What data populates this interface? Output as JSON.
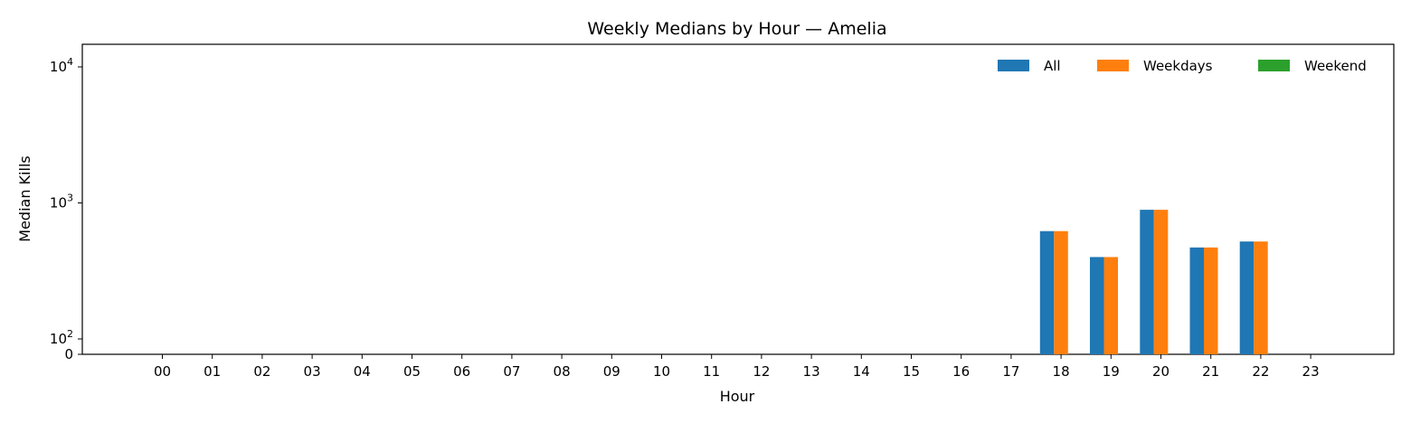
{
  "chart_data": {
    "type": "bar",
    "title": "Weekly Medians by Hour — Amelia",
    "xlabel": "Hour",
    "ylabel": "Median Kills",
    "yscale": "symlog",
    "ylim": [
      0,
      14000
    ],
    "ytick_labels": [
      {
        "value": 0,
        "base": "0",
        "exp": ""
      },
      {
        "value": 100,
        "base": "10",
        "exp": "2"
      },
      {
        "value": 1000,
        "base": "10",
        "exp": "3"
      },
      {
        "value": 10000,
        "base": "10",
        "exp": "4"
      }
    ],
    "categories": [
      "00",
      "01",
      "02",
      "03",
      "04",
      "05",
      "06",
      "07",
      "08",
      "09",
      "10",
      "11",
      "12",
      "13",
      "14",
      "15",
      "16",
      "17",
      "18",
      "19",
      "20",
      "21",
      "22",
      "23"
    ],
    "series": [
      {
        "name": "All",
        "color": "#1f77b4",
        "values": [
          0,
          0,
          0,
          0,
          0,
          0,
          0,
          0,
          0,
          0,
          0,
          0,
          0,
          0,
          0,
          0,
          0,
          0,
          620,
          400,
          890,
          470,
          520,
          0
        ]
      },
      {
        "name": "Weekdays",
        "color": "#ff7f0e",
        "values": [
          0,
          0,
          0,
          0,
          0,
          0,
          0,
          0,
          0,
          0,
          0,
          0,
          0,
          0,
          0,
          0,
          0,
          0,
          620,
          400,
          890,
          470,
          520,
          0
        ]
      },
      {
        "name": "Weekend",
        "color": "#2ca02c",
        "values": [
          0,
          0,
          0,
          0,
          0,
          0,
          0,
          0,
          0,
          0,
          0,
          0,
          0,
          0,
          0,
          0,
          0,
          0,
          0,
          0,
          0,
          0,
          0,
          0
        ]
      }
    ],
    "legend_position": "top-right",
    "grid": false
  }
}
